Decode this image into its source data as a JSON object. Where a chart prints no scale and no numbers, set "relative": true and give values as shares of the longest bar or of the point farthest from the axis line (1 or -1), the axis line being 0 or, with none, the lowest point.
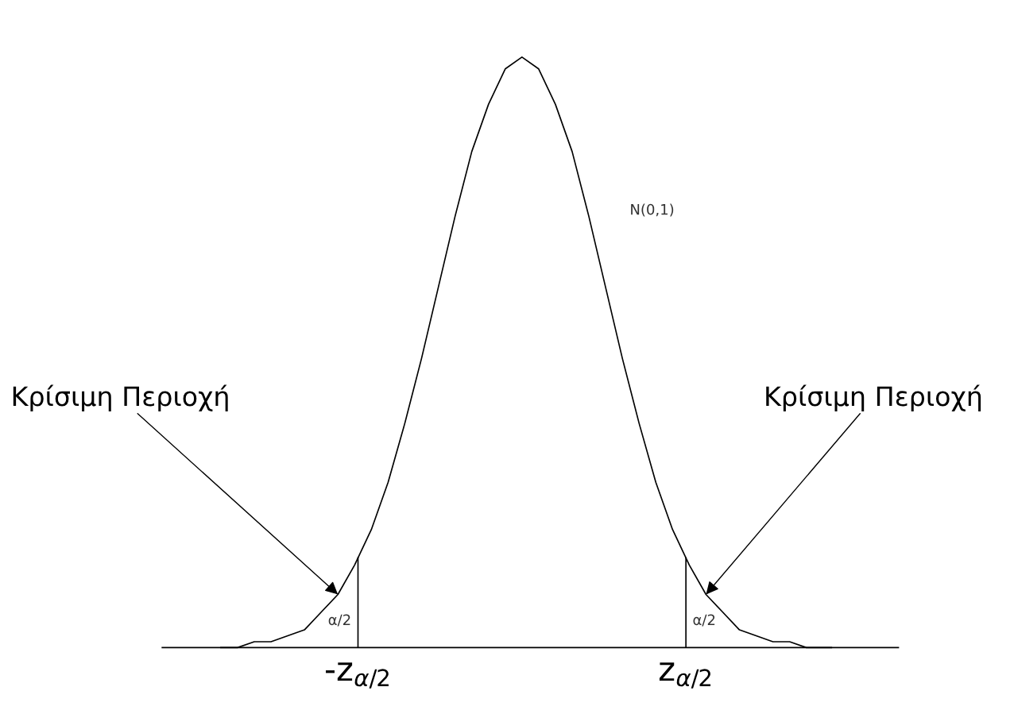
{
  "chart_data": {
    "type": "line",
    "relative": true,
    "x": [
      -3.6,
      -3.4,
      -3.2,
      -3.0,
      -2.8,
      -2.6,
      -2.4,
      -2.2,
      -2.0,
      -1.8,
      -1.6,
      -1.4,
      -1.2,
      -1.0,
      -0.8,
      -0.6,
      -0.4,
      -0.2,
      0,
      0.2,
      0.4,
      0.6,
      0.8,
      1.0,
      1.2,
      1.4,
      1.6,
      1.8,
      2.0,
      2.2,
      2.4,
      2.6,
      2.8,
      3.0,
      3.2,
      3.4,
      3.7
    ],
    "series": [
      {
        "color": "#000000",
        "values": [
          0.0,
          0.0,
          0.01,
          0.01,
          0.02,
          0.03,
          0.06,
          0.09,
          0.14,
          0.2,
          0.28,
          0.38,
          0.49,
          0.61,
          0.73,
          0.84,
          0.92,
          0.98,
          1,
          0.98,
          0.92,
          0.84,
          0.73,
          0.61,
          0.49,
          0.38,
          0.28,
          0.2,
          0.14,
          0.09,
          0.06,
          0.03,
          0.02,
          0.01,
          0.01,
          0.0,
          0.0
        ]
      }
    ],
    "xlim": [
      -4.3,
      4.5
    ],
    "xticks": [
      {
        "value": -1.96,
        "label": "-z$_{α/2}$"
      },
      {
        "value": 1.96,
        "label": "z$_{α/2}$"
      }
    ],
    "tick_labels": "x",
    "ref_lines": [
      {
        "axis": "x",
        "value": -1.96,
        "color": "#000000"
      },
      {
        "axis": "x",
        "value": 1.96,
        "color": "#000000"
      }
    ],
    "annotations": [
      "N(0,1)",
      {
        "text": "Κρίσιμη Περιοχή",
        "x": -2.2,
        "y": 0.09
      },
      {
        "text": "Κρίσιμη Περιοχή",
        "x": 2.2,
        "y": 0.09
      },
      "α/2",
      "α/2"
    ],
    "grid": false,
    "legend": false,
    "marker": "none",
    "line_style": "solid"
  }
}
